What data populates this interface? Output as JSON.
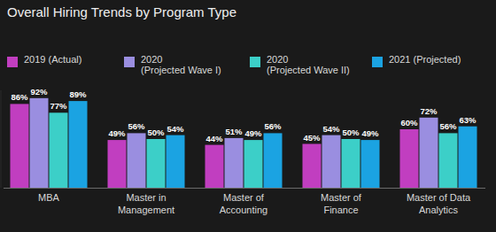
{
  "chart_data": {
    "type": "bar",
    "title": "Overall Hiring Trends by Program Type",
    "categories": [
      "MBA",
      "Master in\nManagement",
      "Master of\nAccounting",
      "Master of\nFinance",
      "Master of Data\nAnalytics"
    ],
    "series": [
      {
        "name": "2019 (Actual)",
        "color": "#c13ec0",
        "values": [
          86,
          49,
          44,
          45,
          60
        ],
        "value_labels": [
          "86%",
          "49%",
          "44%",
          "45%",
          "60%"
        ]
      },
      {
        "name": "2020\n(Projected Wave I)",
        "color": "#9a8ee0",
        "values": [
          92,
          56,
          51,
          54,
          72
        ],
        "value_labels": [
          "92%",
          "56%",
          "51%",
          "54%",
          "72%"
        ]
      },
      {
        "name": "2020\n(Projected Wave II)",
        "color": "#3ccfc8",
        "values": [
          77,
          50,
          49,
          50,
          56
        ],
        "value_labels": [
          "77%",
          "50%",
          "49%",
          "50%",
          "56%"
        ]
      },
      {
        "name": "2021 (Projected)",
        "color": "#1ba3e2",
        "values": [
          89,
          54,
          56,
          49,
          63
        ],
        "value_labels": [
          "89%",
          "54%",
          "56%",
          "49%",
          "63%"
        ]
      }
    ],
    "ylim": [
      0,
      100
    ],
    "data_labels": true,
    "tick_labels": "x",
    "legend": "top",
    "grid": false
  }
}
